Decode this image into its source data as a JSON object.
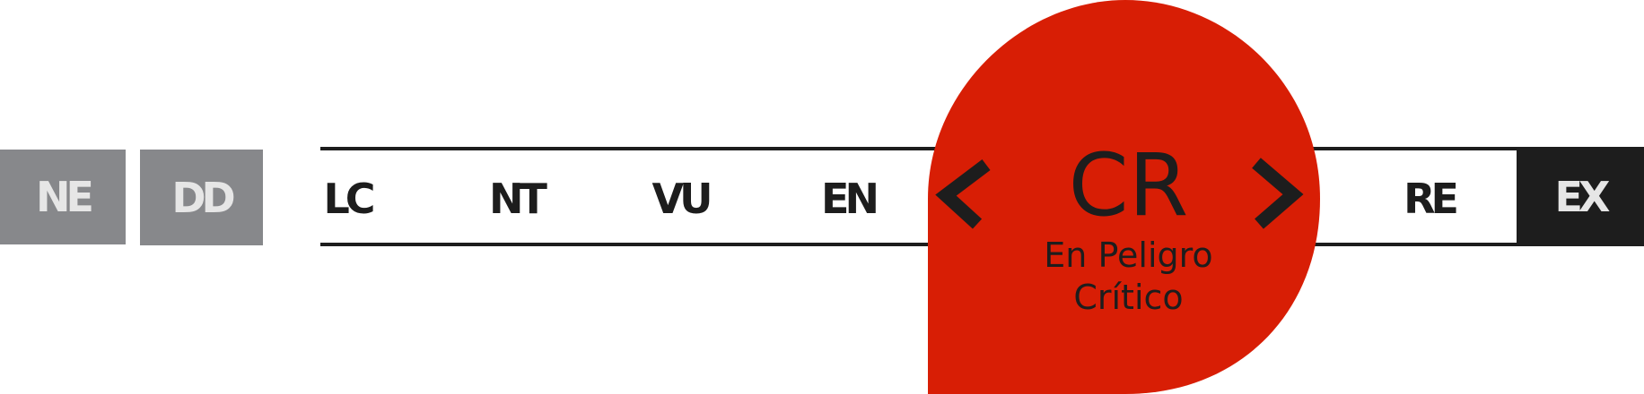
{
  "categories": [
    {
      "code": "NE"
    },
    {
      "code": "DD"
    },
    {
      "code": "LC"
    },
    {
      "code": "NT"
    },
    {
      "code": "VU"
    },
    {
      "code": "EN"
    },
    {
      "code": "CR",
      "name_line1": "En Peligro",
      "name_line2": "Crítico"
    },
    {
      "code": "RE"
    },
    {
      "code": "EX"
    }
  ],
  "selected": "CR",
  "colors": {
    "selected_accent": "#d81e05",
    "not_evaluated_gray": "#87888b",
    "extinct_dark": "#1d1d1d"
  },
  "icons": [
    "chevron-left-icon",
    "chevron-right-icon"
  ]
}
